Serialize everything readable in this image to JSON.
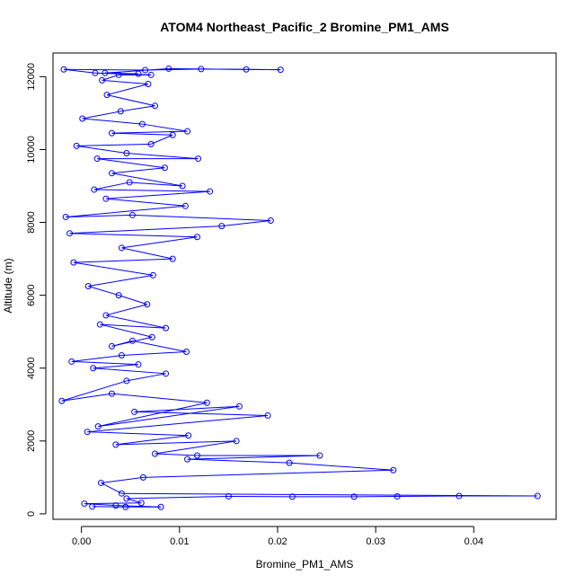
{
  "chart_data": {
    "type": "scatter",
    "title": "ATOM4 Northeast_Pacific_2 Bromine_PM1_AMS",
    "xlabel": "Bromine_PM1_AMS",
    "ylabel": "Altitude (m)",
    "xlim": [
      -0.0029,
      0.0484
    ],
    "ylim": [
      -150,
      12650
    ],
    "x_ticks": [
      0.0,
      0.01,
      0.02,
      0.03,
      0.04
    ],
    "x_tick_labels": [
      "0.00",
      "0.01",
      "0.02",
      "0.03",
      "0.04"
    ],
    "y_ticks": [
      0,
      2000,
      4000,
      6000,
      8000,
      10000,
      12000
    ],
    "y_tick_labels": [
      "0",
      "2000",
      "4000",
      "6000",
      "8000",
      "10000",
      "12000"
    ],
    "grid": false,
    "legend": "none",
    "marker": "open-circle",
    "connected": true,
    "series": [
      {
        "color": "#0000ff",
        "points": [
          {
            "x": 0.0011,
            "y": 200
          },
          {
            "x": 0.0045,
            "y": 190
          },
          {
            "x": 0.0081,
            "y": 190
          },
          {
            "x": 0.0035,
            "y": 230
          },
          {
            "x": 0.0003,
            "y": 280
          },
          {
            "x": 0.0061,
            "y": 300
          },
          {
            "x": 0.0046,
            "y": 420
          },
          {
            "x": 0.015,
            "y": 480
          },
          {
            "x": 0.0215,
            "y": 470
          },
          {
            "x": 0.0278,
            "y": 470
          },
          {
            "x": 0.0322,
            "y": 480
          },
          {
            "x": 0.0385,
            "y": 490
          },
          {
            "x": 0.0465,
            "y": 490
          },
          {
            "x": 0.0041,
            "y": 560
          },
          {
            "x": 0.002,
            "y": 850
          },
          {
            "x": 0.0063,
            "y": 1000
          },
          {
            "x": 0.0318,
            "y": 1200
          },
          {
            "x": 0.0212,
            "y": 1400
          },
          {
            "x": 0.0108,
            "y": 1500
          },
          {
            "x": 0.0243,
            "y": 1600
          },
          {
            "x": 0.0118,
            "y": 1600
          },
          {
            "x": 0.0075,
            "y": 1650
          },
          {
            "x": 0.0158,
            "y": 2000
          },
          {
            "x": 0.0035,
            "y": 1900
          },
          {
            "x": 0.0109,
            "y": 2150
          },
          {
            "x": 0.0006,
            "y": 2250
          },
          {
            "x": 0.019,
            "y": 2700
          },
          {
            "x": 0.0054,
            "y": 2800
          },
          {
            "x": 0.0161,
            "y": 2950
          },
          {
            "x": 0.0017,
            "y": 2400
          },
          {
            "x": 0.0128,
            "y": 3050
          },
          {
            "x": 0.0031,
            "y": 3300
          },
          {
            "x": -0.002,
            "y": 3100
          },
          {
            "x": 0.0046,
            "y": 3650
          },
          {
            "x": 0.0086,
            "y": 3850
          },
          {
            "x": 0.0012,
            "y": 4000
          },
          {
            "x": 0.0058,
            "y": 4100
          },
          {
            "x": -0.001,
            "y": 4180
          },
          {
            "x": 0.0041,
            "y": 4350
          },
          {
            "x": 0.0107,
            "y": 4450
          },
          {
            "x": 0.0052,
            "y": 4750
          },
          {
            "x": 0.0031,
            "y": 4600
          },
          {
            "x": 0.0072,
            "y": 4850
          },
          {
            "x": 0.0019,
            "y": 5200
          },
          {
            "x": 0.0086,
            "y": 5100
          },
          {
            "x": 0.0025,
            "y": 5450
          },
          {
            "x": 0.0067,
            "y": 5750
          },
          {
            "x": 0.0038,
            "y": 6000
          },
          {
            "x": 0.0007,
            "y": 6250
          },
          {
            "x": 0.0073,
            "y": 6550
          },
          {
            "x": -0.0008,
            "y": 6900
          },
          {
            "x": 0.0093,
            "y": 7000
          },
          {
            "x": 0.0041,
            "y": 7300
          },
          {
            "x": 0.0118,
            "y": 7600
          },
          {
            "x": -0.0012,
            "y": 7700
          },
          {
            "x": 0.0143,
            "y": 7900
          },
          {
            "x": 0.0193,
            "y": 8050
          },
          {
            "x": 0.0052,
            "y": 8200
          },
          {
            "x": -0.0016,
            "y": 8150
          },
          {
            "x": 0.0106,
            "y": 8450
          },
          {
            "x": 0.0025,
            "y": 8650
          },
          {
            "x": 0.0131,
            "y": 8850
          },
          {
            "x": 0.0013,
            "y": 8900
          },
          {
            "x": 0.0049,
            "y": 9100
          },
          {
            "x": 0.0103,
            "y": 9000
          },
          {
            "x": 0.0031,
            "y": 9350
          },
          {
            "x": 0.0085,
            "y": 9500
          },
          {
            "x": 0.0016,
            "y": 9750
          },
          {
            "x": 0.0119,
            "y": 9750
          },
          {
            "x": 0.0046,
            "y": 9900
          },
          {
            "x": -0.0005,
            "y": 10100
          },
          {
            "x": 0.0071,
            "y": 10150
          },
          {
            "x": 0.0093,
            "y": 10400
          },
          {
            "x": 0.0031,
            "y": 10450
          },
          {
            "x": 0.0108,
            "y": 10500
          },
          {
            "x": 0.0062,
            "y": 10700
          },
          {
            "x": 0.0001,
            "y": 10850
          },
          {
            "x": 0.004,
            "y": 11050
          },
          {
            "x": 0.0075,
            "y": 11200
          },
          {
            "x": 0.0026,
            "y": 11500
          },
          {
            "x": 0.0068,
            "y": 11800
          },
          {
            "x": 0.0021,
            "y": 11900
          },
          {
            "x": 0.0038,
            "y": 12050
          },
          {
            "x": 0.0071,
            "y": 12050
          },
          {
            "x": 0.0014,
            "y": 12100
          },
          {
            "x": -0.0018,
            "y": 12200
          },
          {
            "x": 0.0065,
            "y": 12180
          },
          {
            "x": 0.0122,
            "y": 12210
          },
          {
            "x": 0.0168,
            "y": 12200
          },
          {
            "x": 0.0203,
            "y": 12190
          },
          {
            "x": 0.0089,
            "y": 12220
          },
          {
            "x": 0.0024,
            "y": 12100
          },
          {
            "x": 0.0058,
            "y": 12080
          }
        ]
      }
    ]
  }
}
